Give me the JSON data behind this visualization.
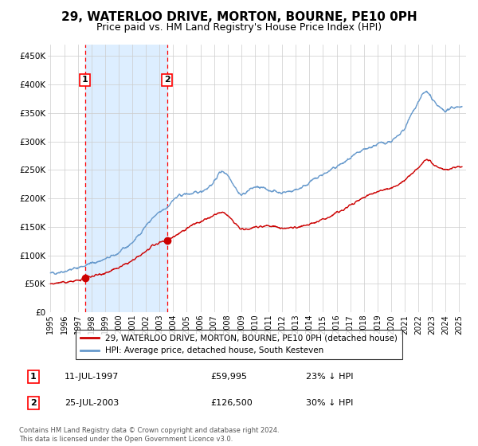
{
  "title": "29, WATERLOO DRIVE, MORTON, BOURNE, PE10 0PH",
  "subtitle": "Price paid vs. HM Land Registry's House Price Index (HPI)",
  "title_fontsize": 11,
  "subtitle_fontsize": 9,
  "background_color": "#ffffff",
  "plot_bg_color": "#ffffff",
  "grid_color": "#cccccc",
  "hpi_color": "#6699cc",
  "price_color": "#cc0000",
  "shade_color": "#ddeeff",
  "sale1_date_num": 1997.53,
  "sale1_price": 59995,
  "sale1_label": "1",
  "sale2_date_num": 2003.56,
  "sale2_price": 126500,
  "sale2_label": "2",
  "ylim": [
    0,
    470000
  ],
  "xlim_start": 1994.8,
  "xlim_end": 2025.5,
  "yticks": [
    0,
    50000,
    100000,
    150000,
    200000,
    250000,
    300000,
    350000,
    400000,
    450000
  ],
  "ytick_labels": [
    "£0",
    "£50K",
    "£100K",
    "£150K",
    "£200K",
    "£250K",
    "£300K",
    "£350K",
    "£400K",
    "£450K"
  ],
  "xticks": [
    1995,
    1996,
    1997,
    1998,
    1999,
    2000,
    2001,
    2002,
    2003,
    2004,
    2005,
    2006,
    2007,
    2008,
    2009,
    2010,
    2011,
    2012,
    2013,
    2014,
    2015,
    2016,
    2017,
    2018,
    2019,
    2020,
    2021,
    2022,
    2023,
    2024,
    2025
  ],
  "legend1_label": "29, WATERLOO DRIVE, MORTON, BOURNE, PE10 0PH (detached house)",
  "legend2_label": "HPI: Average price, detached house, South Kesteven",
  "info1_num": "1",
  "info1_date": "11-JUL-1997",
  "info1_price": "£59,995",
  "info1_hpi": "23% ↓ HPI",
  "info2_num": "2",
  "info2_date": "25-JUL-2003",
  "info2_price": "£126,500",
  "info2_hpi": "30% ↓ HPI",
  "footer": "Contains HM Land Registry data © Crown copyright and database right 2024.\nThis data is licensed under the Open Government Licence v3.0."
}
